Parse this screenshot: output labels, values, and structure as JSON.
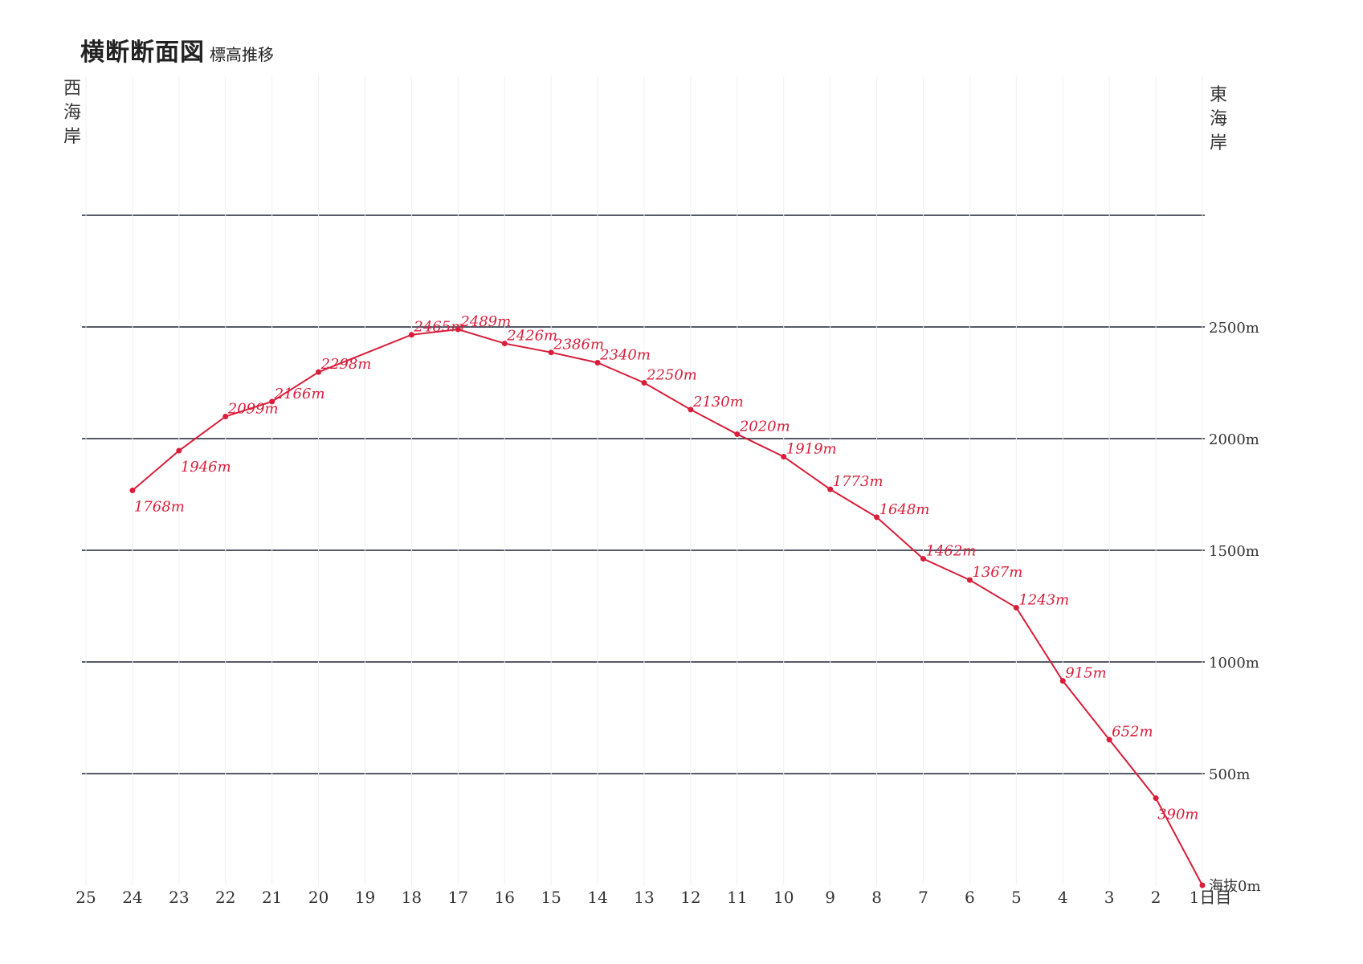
{
  "page": {
    "title": "横断断面図",
    "subtitle": "標高推移",
    "west_label": "西海岸",
    "east_label": "東海岸"
  },
  "colors": {
    "series": "#d81e3a",
    "grid": "#555a66",
    "text": "#333333"
  },
  "chart_data": {
    "type": "line",
    "title": "横断断面図",
    "subtitle": "標高推移",
    "xlabel": "",
    "ylabel": "",
    "x_direction": "reversed",
    "xlim": [
      1,
      25
    ],
    "ylim": [
      0,
      3000
    ],
    "y_ticks": [
      0,
      500,
      1000,
      1500,
      2000,
      2500,
      3000
    ],
    "y_tick_labels": [
      "海抜0m",
      "500m",
      "1000m",
      "1500m",
      "2000m",
      "2500m",
      ""
    ],
    "x_ticks": [
      25,
      24,
      23,
      22,
      21,
      20,
      19,
      18,
      17,
      16,
      15,
      14,
      13,
      12,
      11,
      10,
      9,
      8,
      7,
      6,
      5,
      4,
      3,
      2,
      1
    ],
    "x_tick_labels": [
      "25",
      "24",
      "23",
      "22",
      "21",
      "20",
      "19",
      "18",
      "17",
      "16",
      "15",
      "14",
      "13",
      "12",
      "11",
      "10",
      "9",
      "8",
      "7",
      "6",
      "5",
      "4",
      "3",
      "2",
      "1日目"
    ],
    "grid": true,
    "series": [
      {
        "x": [
          24,
          23,
          22,
          21,
          20,
          18,
          17,
          16,
          15,
          14,
          13,
          12,
          11,
          10,
          9,
          8,
          7,
          6,
          5,
          4,
          3,
          2,
          1
        ],
        "values": [
          1768,
          1946,
          2099,
          2166,
          2298,
          2465,
          2489,
          2426,
          2386,
          2340,
          2250,
          2130,
          2020,
          1919,
          1773,
          1648,
          1462,
          1367,
          1243,
          915,
          652,
          390,
          0
        ],
        "labels": [
          "1768m",
          "1946m",
          "2099m",
          "2166m",
          "2298m",
          "2465m",
          "2489m",
          "2426m",
          "2386m",
          "2340m",
          "2250m",
          "2130m",
          "2020m",
          "1919m",
          "1773m",
          "1648m",
          "1462m",
          "1367m",
          "1243m",
          "915m",
          "652m",
          "390m",
          ""
        ]
      }
    ]
  }
}
